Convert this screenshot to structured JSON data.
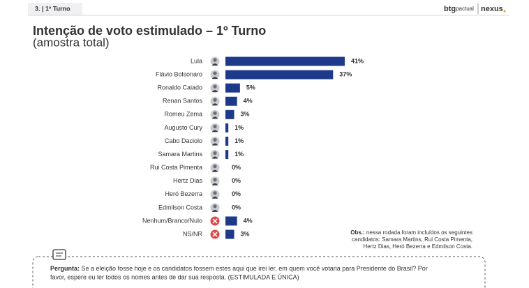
{
  "header": {
    "section": "3. | 1º Turno",
    "logo_left": "btg",
    "logo_left_small": "pactual",
    "logo_right": "nexus"
  },
  "chart_data": {
    "type": "bar",
    "orientation": "horizontal",
    "title": "Intenção de voto estimulado – 1º Turno",
    "subtitle": "(amostra total)",
    "categories": [
      "Lula",
      "Flávio Bolsonaro",
      "Ronaldo Caiado",
      "Renan Santos",
      "Romeu Zema",
      "Augusto Cury",
      "Cabo Daciolo",
      "Samara Martins",
      "Rui Costa Pimenta",
      "Hertz Dias",
      "Heró Bezerra",
      "Edmilson Costa",
      "Nenhum/Branco/Nulo",
      "NS/NR"
    ],
    "values": [
      41,
      37,
      5,
      4,
      3,
      1,
      1,
      1,
      0,
      0,
      0,
      0,
      4,
      3
    ],
    "value_labels": [
      "41%",
      "37%",
      "5%",
      "4%",
      "3%",
      "1%",
      "1%",
      "1%",
      "0%",
      "0%",
      "0%",
      "0%",
      "4%",
      "3%"
    ],
    "color": "#1d3a8a"
  },
  "note": {
    "label": "Obs.:",
    "lines": [
      "nessa rodada foram incluídos os seguintes",
      "candidatos: Samara Martins, Rui Costa Pimenta,",
      "Hertz Dias, Heró Bezerra e Edmilson Costa."
    ]
  },
  "question": {
    "label": "Pergunta:",
    "lines": [
      "Se a eleição fosse hoje e os candidatos fossem estes aqui que irei ler, em quem você votaria para Presidente do Brasil? Por",
      "favor, espere eu ler todos os nomes antes de dar sua resposta. (ESTIMULADA E ÚNICA)"
    ]
  }
}
